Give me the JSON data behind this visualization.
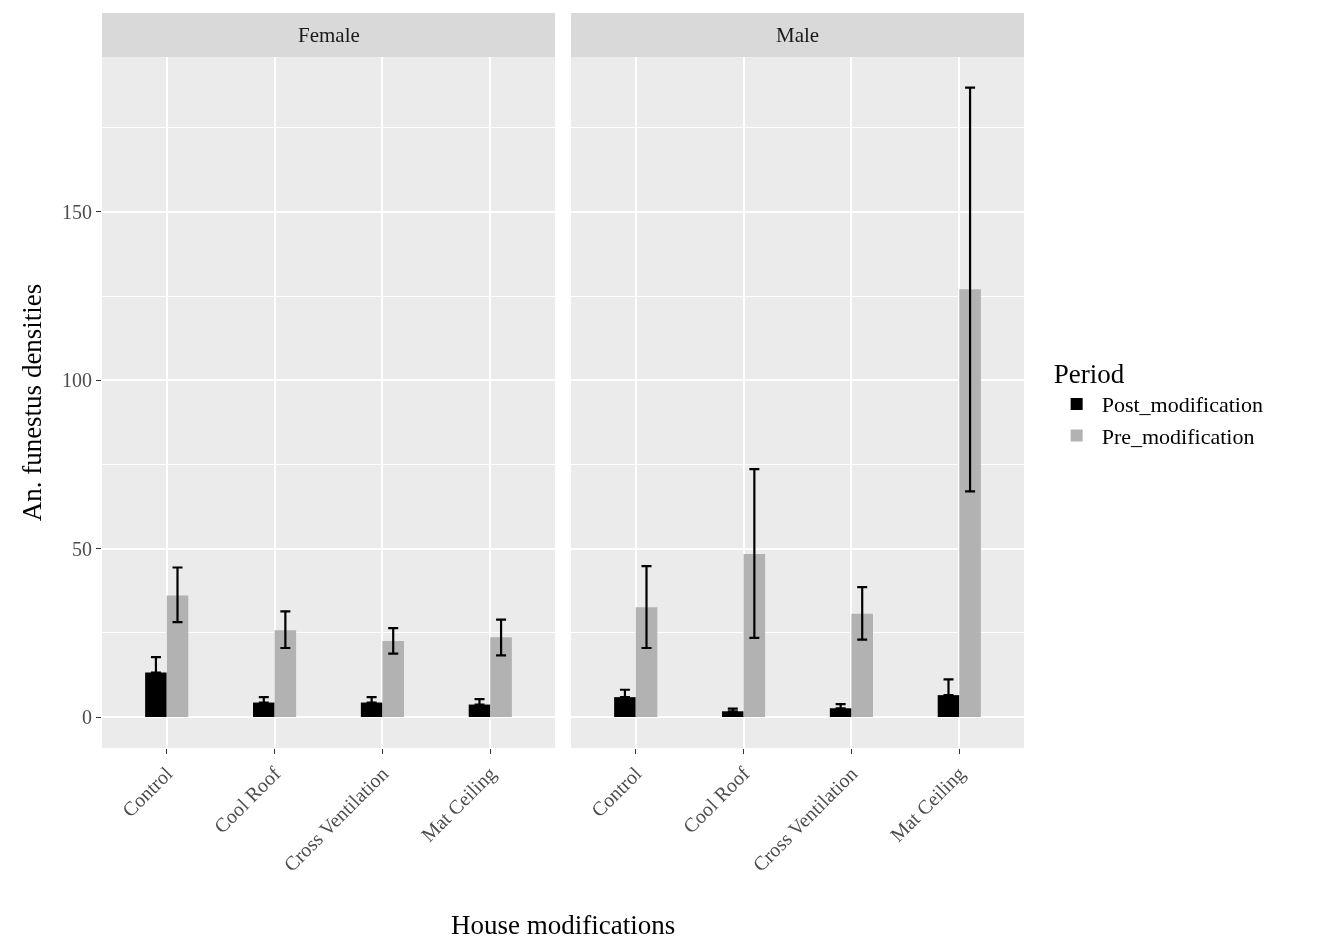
{
  "chart_data": [
    {
      "type": "bar",
      "title": "Female",
      "xlabel": "House modifications",
      "ylabel": "An. funestus densities",
      "legend_title": "Period",
      "legend": "right",
      "grid": true,
      "categories": [
        "Control",
        "Cool Roof",
        "Cross Ventilation",
        "Mat Ceiling"
      ],
      "series": [
        {
          "name": "Post_modification",
          "color": "#000000",
          "values": [
            13.2,
            4.3,
            4.3,
            3.7
          ],
          "errors": [
            [
              13.2,
              17.8
            ],
            [
              4.3,
              5.9
            ],
            [
              4.3,
              5.9
            ],
            [
              3.7,
              5.3
            ]
          ]
        },
        {
          "name": "Pre_modification",
          "color": "#b2b2b2",
          "values": [
            36.1,
            25.8,
            22.6,
            23.7
          ],
          "errors": [
            [
              28.2,
              44.4
            ],
            [
              20.5,
              31.4
            ],
            [
              18.8,
              26.4
            ],
            [
              18.3,
              28.9
            ]
          ]
        }
      ],
      "ylim": [
        -9.2,
        196
      ],
      "yticks": [
        0,
        50,
        100,
        150
      ]
    },
    {
      "type": "bar",
      "title": "Male",
      "grid": true,
      "tick_labels": "x",
      "categories": [
        "Control",
        "Cool Roof",
        "Cross Ventilation",
        "Mat Ceiling"
      ],
      "series": [
        {
          "color": "#000000",
          "values": [
            5.9,
            1.7,
            2.6,
            6.5
          ],
          "errors": [
            [
              5.9,
              8.1
            ],
            [
              1.7,
              2.5
            ],
            [
              2.6,
              3.8
            ],
            [
              6.5,
              11.2
            ]
          ]
        },
        {
          "color": "#b2b2b2",
          "values": [
            32.6,
            48.4,
            30.7,
            127.0
          ],
          "errors": [
            [
              20.5,
              44.8
            ],
            [
              23.5,
              73.6
            ],
            [
              23.0,
              38.6
            ],
            [
              67.0,
              186.9
            ]
          ]
        }
      ],
      "ylim": [
        -9.2,
        196
      ],
      "yticks": [
        0,
        50,
        100,
        150
      ]
    }
  ]
}
